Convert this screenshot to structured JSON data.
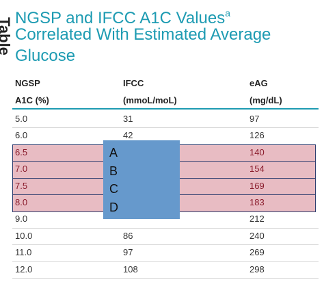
{
  "side_label": "Table",
  "title": {
    "line1": "NGSP and IFCC A1C Values",
    "superscript": "a",
    "line2": "Correlated With Estimated Average",
    "line3": "Glucose"
  },
  "table": {
    "headers": [
      [
        "NGSP",
        "A1C (%)"
      ],
      [
        "IFCC",
        "(mmoL/moL)"
      ],
      [
        "eAG",
        "(mg/dL)"
      ]
    ],
    "rows": [
      {
        "ngsp": "5.0",
        "ifcc": "31",
        "eag": "97"
      },
      {
        "ngsp": "6.0",
        "ifcc": "42",
        "eag": "126"
      },
      {
        "ngsp": "6.5",
        "eag": "140",
        "highlight": true
      },
      {
        "ngsp": "7.0",
        "eag": "154",
        "highlight": true
      },
      {
        "ngsp": "7.5",
        "eag": "169",
        "highlight": true
      },
      {
        "ngsp": "8.0",
        "eag": "183",
        "highlight": true
      },
      {
        "ngsp": "9.0",
        "eag": "212"
      },
      {
        "ngsp": "10.0",
        "ifcc": "86",
        "eag": "240"
      },
      {
        "ngsp": "11.0",
        "ifcc": "97",
        "eag": "269"
      },
      {
        "ngsp": "12.0",
        "ifcc": "108",
        "eag": "298"
      }
    ]
  },
  "overlay": {
    "labels": [
      "A",
      "B",
      "C",
      "D"
    ]
  }
}
